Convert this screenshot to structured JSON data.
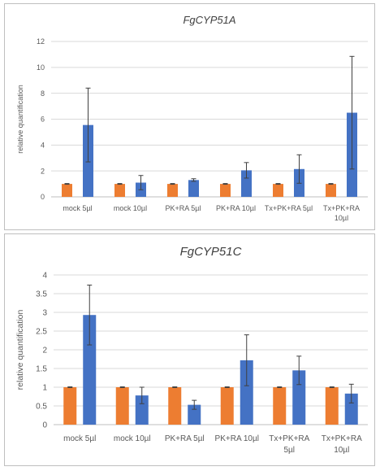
{
  "chart_data": [
    {
      "type": "bar",
      "title": "FgCYP51A",
      "ylabel": "relative quantification",
      "xlabel": "",
      "ylim": [
        0,
        12
      ],
      "yticks": [
        0,
        2,
        4,
        6,
        8,
        10,
        12
      ],
      "categories": [
        [
          "mock 5µl"
        ],
        [
          "mock 10µl"
        ],
        [
          "PK+RA 5µl"
        ],
        [
          "PK+RA 10µl"
        ],
        [
          "Tx+PK+RA 5µl"
        ],
        [
          "Tx+PK+RA",
          "10µl"
        ]
      ],
      "series": [
        {
          "color": "#ED7D31",
          "values": [
            1,
            1,
            1,
            1,
            1,
            1
          ],
          "errors": [
            0.03,
            0.03,
            0.03,
            0.03,
            0.03,
            0.03
          ]
        },
        {
          "color": "#4472C4",
          "values": [
            5.55,
            1.1,
            1.3,
            2.05,
            2.15,
            6.5
          ],
          "errors": [
            2.85,
            0.55,
            0.1,
            0.6,
            1.1,
            4.35
          ]
        }
      ],
      "grid": true,
      "legend": "none"
    },
    {
      "type": "bar",
      "title": "FgCYP51C",
      "ylabel": "relative quantification",
      "xlabel": "",
      "ylim": [
        0,
        4
      ],
      "yticks": [
        0,
        0.5,
        1,
        1.5,
        2,
        2.5,
        3,
        3.5,
        4
      ],
      "categories": [
        [
          "mock 5µl"
        ],
        [
          "mock 10µl"
        ],
        [
          "PK+RA 5µl"
        ],
        [
          "PK+RA 10µl"
        ],
        [
          "Tx+PK+RA",
          "5µl"
        ],
        [
          "Tx+PK+RA",
          "10µl"
        ]
      ],
      "series": [
        {
          "color": "#ED7D31",
          "values": [
            1,
            1,
            1,
            1,
            1,
            1
          ],
          "errors": [
            0.01,
            0.01,
            0.01,
            0.01,
            0.01,
            0.01
          ]
        },
        {
          "color": "#4472C4",
          "values": [
            2.93,
            0.78,
            0.53,
            1.72,
            1.45,
            0.83
          ],
          "errors": [
            0.8,
            0.22,
            0.12,
            0.68,
            0.38,
            0.25
          ]
        }
      ],
      "grid": true,
      "legend": "none"
    }
  ]
}
